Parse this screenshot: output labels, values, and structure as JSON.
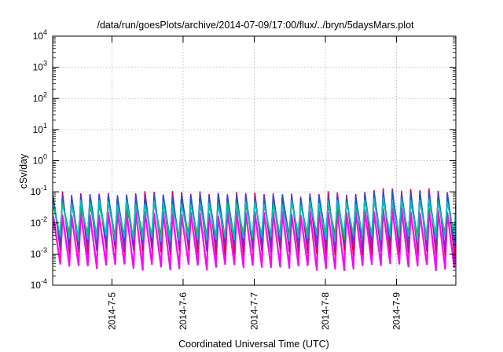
{
  "chart_data": {
    "type": "line",
    "title": "/data/run/goesPlots/archive/2014-07-09/17:00/flux/../bryn/5daysMars.plot",
    "xlabel": "Coordinated Universal Time (UTC)",
    "ylabel": "cSv/day",
    "yscale": "log",
    "ylim": [
      0.0001,
      10000
    ],
    "y_ticks": [
      {
        "base": "10",
        "exp": "-4",
        "value": 0.0001
      },
      {
        "base": "10",
        "exp": "-3",
        "value": 0.001
      },
      {
        "base": "10",
        "exp": "-2",
        "value": 0.01
      },
      {
        "base": "10",
        "exp": "-1",
        "value": 0.1
      },
      {
        "base": "10",
        "exp": "0",
        "value": 1
      },
      {
        "base": "10",
        "exp": "1",
        "value": 10
      },
      {
        "base": "10",
        "exp": "2",
        "value": 100
      },
      {
        "base": "10",
        "exp": "3",
        "value": 1000
      },
      {
        "base": "10",
        "exp": "4",
        "value": 10000
      }
    ],
    "xlim": [
      "2014-07-04T04:00",
      "2014-07-09T20:00"
    ],
    "x_ticks": [
      {
        "label": "2014-7-5",
        "date": "2014-07-05T00:00"
      },
      {
        "label": "2014-7-6",
        "date": "2014-07-06T00:00"
      },
      {
        "label": "2014-7-7",
        "date": "2014-07-07T00:00"
      },
      {
        "label": "2014-7-8",
        "date": "2014-07-08T00:00"
      },
      {
        "label": "2014-7-9",
        "date": "2014-07-09T00:00"
      }
    ],
    "grid": true,
    "pattern": "sawtooth, about 7.7 cycles per day",
    "series": [
      {
        "color": "#e0003c",
        "peak": 0.085,
        "trough": 0.0012
      },
      {
        "color": "#7b2cc9",
        "peak": 0.075,
        "trough": 0.0016
      },
      {
        "color": "#1e4fe0",
        "peak": 0.07,
        "trough": 0.0028
      },
      {
        "color": "#00c0c0",
        "peak": 0.045,
        "trough": 0.0032
      },
      {
        "color": "#00b800",
        "peak": 0.04,
        "trough": 0.0038
      },
      {
        "color": "#ff00ff",
        "peak": 0.02,
        "trough": 0.0004
      }
    ]
  }
}
